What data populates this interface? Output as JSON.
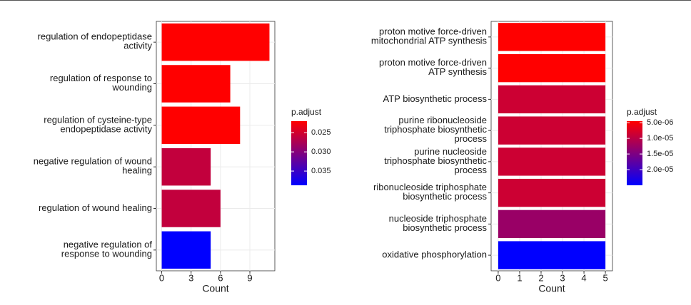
{
  "chart_data": [
    {
      "type": "bar",
      "orientation": "horizontal",
      "categories": [
        "regulation of endopeptidase\nactivity",
        "regulation of response to\nwounding",
        "regulation of cysteine-type\nendopeptidase activity",
        "negative regulation of wound\nhealing",
        "regulation of wound healing",
        "negative regulation of\nresponse to wounding"
      ],
      "values": [
        11,
        7,
        8,
        5,
        6,
        5
      ],
      "color_values": [
        0.022,
        0.022,
        0.022,
        0.026,
        0.026,
        0.0387
      ],
      "color_title": "p.adjust",
      "color_low": "#FF0000",
      "color_high": "#0000FF",
      "clim": [
        0.022,
        0.0387
      ],
      "cticks": [
        0.025,
        {
          "value": 0.03,
          "label": "0.030"
        },
        0.035
      ],
      "xlabel": "Count",
      "xlim": [
        -0.55,
        11.55
      ],
      "xticks": [
        0,
        3,
        6,
        9
      ],
      "grid": true
    },
    {
      "type": "bar",
      "orientation": "horizontal",
      "categories": [
        "proton motive force-driven\nmitochondrial ATP synthesis",
        "proton motive force-driven\nATP synthesis",
        "ATP biosynthetic process",
        "purine ribonucleoside\ntriphosphate biosynthetic\nprocess",
        "purine nucleoside\ntriphosphate biosynthetic\nprocess",
        "ribonucleoside triphosphate\nbiosynthetic process",
        "nucleoside triphosphate\nbiosynthetic process",
        "oxidative phosphorylation"
      ],
      "values": [
        5,
        5,
        5,
        5,
        5,
        5,
        5,
        5
      ],
      "color_values": [
        4.5e-06,
        4.5e-06,
        8.6e-06,
        8.6e-06,
        8.6e-06,
        8.6e-06,
        1.27e-05,
        2.5e-05
      ],
      "color_title": "p.adjust",
      "color_low": "#FF0000",
      "color_high": "#0000FF",
      "clim": [
        4.5e-06,
        2.5e-05
      ],
      "cticks": [
        {
          "value": 5e-06,
          "label": "5.0e-06"
        },
        {
          "value": 1e-05,
          "label": "1.0e-05"
        },
        {
          "value": 1.5e-05,
          "label": "1.5e-05"
        },
        {
          "value": 2e-05,
          "label": "2.0e-05"
        }
      ],
      "xlabel": "Count",
      "xlim": [
        -0.33,
        5.33
      ],
      "xticks": [
        0,
        1,
        2,
        3,
        4,
        5
      ],
      "grid": true
    }
  ]
}
